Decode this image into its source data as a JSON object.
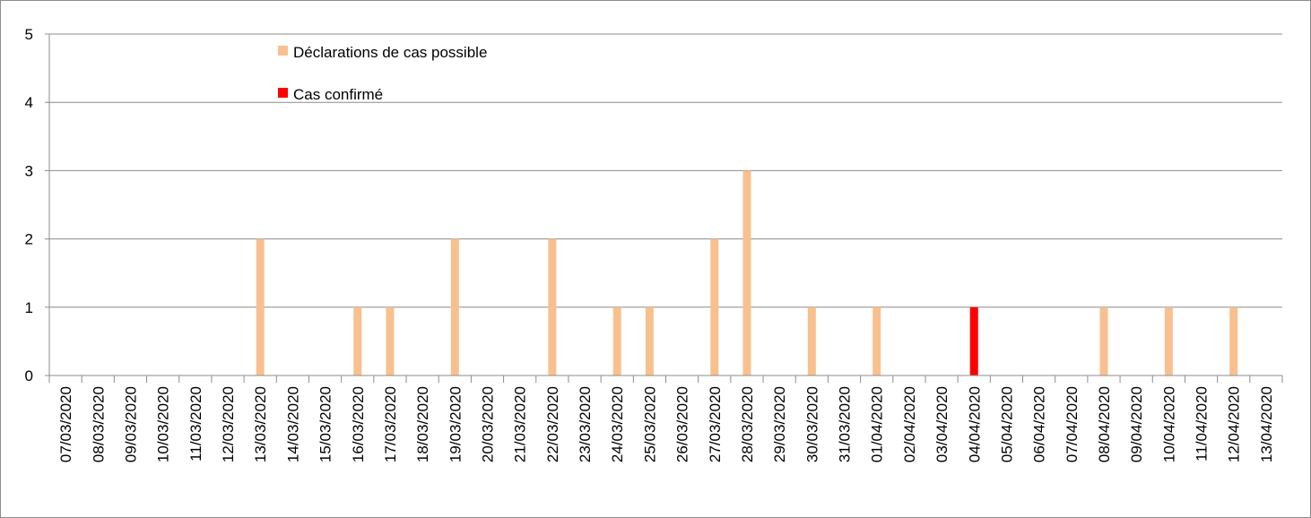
{
  "chart_data": {
    "type": "bar",
    "title": "",
    "xlabel": "",
    "ylabel": "",
    "ylim": [
      0,
      5
    ],
    "yticks": [
      "0",
      "1",
      "2",
      "3",
      "4",
      "5"
    ],
    "grid": true,
    "legend_position": "top-left inside plot",
    "categories": [
      "07/03/2020",
      "08/03/2020",
      "09/03/2020",
      "10/03/2020",
      "11/03/2020",
      "12/03/2020",
      "13/03/2020",
      "14/03/2020",
      "15/03/2020",
      "16/03/2020",
      "17/03/2020",
      "18/03/2020",
      "19/03/2020",
      "20/03/2020",
      "21/03/2020",
      "22/03/2020",
      "23/03/2020",
      "24/03/2020",
      "25/03/2020",
      "26/03/2020",
      "27/03/2020",
      "28/03/2020",
      "29/03/2020",
      "30/03/2020",
      "31/03/2020",
      "01/04/2020",
      "02/04/2020",
      "03/04/2020",
      "04/04/2020",
      "05/04/2020",
      "06/04/2020",
      "07/04/2020",
      "08/04/2020",
      "09/04/2020",
      "10/04/2020",
      "11/04/2020",
      "12/04/2020",
      "13/04/2020"
    ],
    "series": [
      {
        "name": "Déclarations de cas possible",
        "color": "#f9c08f",
        "values": [
          0,
          0,
          0,
          0,
          0,
          0,
          2,
          0,
          0,
          1,
          1,
          0,
          2,
          0,
          0,
          2,
          0,
          1,
          1,
          0,
          2,
          3,
          0,
          1,
          0,
          1,
          0,
          0,
          0,
          0,
          0,
          0,
          1,
          0,
          1,
          0,
          1,
          0
        ]
      },
      {
        "name": "Cas confirmé",
        "color": "#ff0000",
        "values": [
          0,
          0,
          0,
          0,
          0,
          0,
          0,
          0,
          0,
          0,
          0,
          0,
          0,
          0,
          0,
          0,
          0,
          0,
          0,
          0,
          0,
          0,
          0,
          0,
          0,
          0,
          0,
          0,
          1,
          0,
          0,
          0,
          0,
          0,
          0,
          0,
          0,
          0
        ]
      }
    ]
  }
}
